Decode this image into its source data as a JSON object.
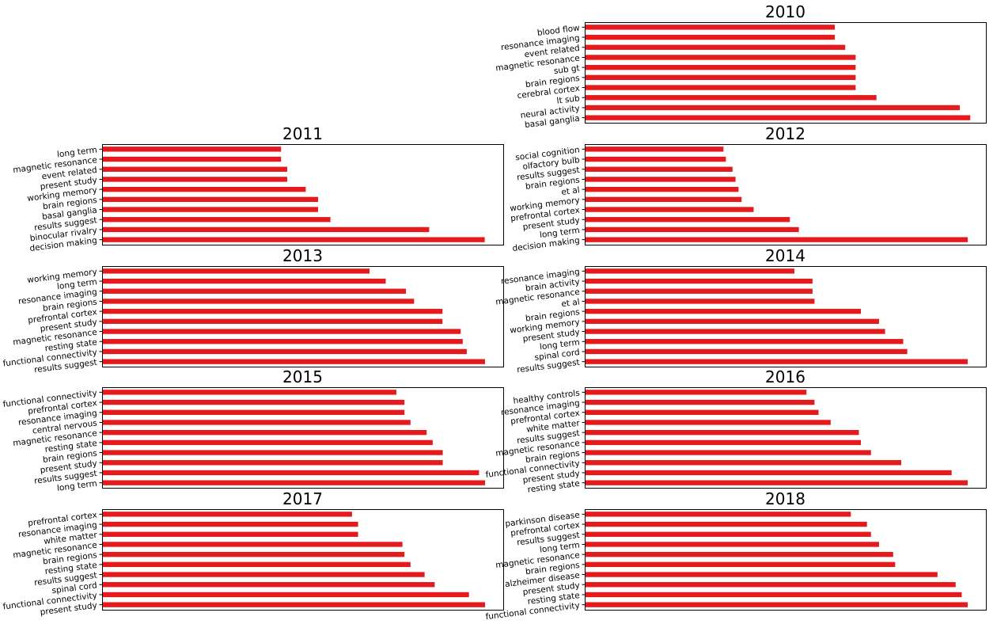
{
  "colors": {
    "bar": "#e41a1c",
    "axes": "#000000",
    "background": "#ffffff"
  },
  "chart_data": [
    {
      "type": "bar",
      "orientation": "horizontal",
      "title": "2010",
      "categories": [
        "blood flow",
        "resonance imaging",
        "event related",
        "magnetic resonance",
        "sub gt",
        "brain regions",
        "cerebral cortex",
        "lt sub",
        "neural activity",
        "basal ganglia"
      ],
      "values": [
        24,
        24,
        25,
        26,
        26,
        26,
        26,
        28,
        36,
        37
      ],
      "xlim": [
        0,
        38.5
      ]
    },
    {
      "type": "bar",
      "orientation": "horizontal",
      "title": "2011",
      "categories": [
        "long term",
        "magnetic resonance",
        "event related",
        "present study",
        "working memory",
        "brain regions",
        "basal ganglia",
        "results suggest",
        "binocular rivalry",
        "decision making"
      ],
      "values": [
        29,
        29,
        30,
        30,
        33,
        35,
        35,
        37,
        53,
        62
      ],
      "xlim": [
        0,
        65
      ]
    },
    {
      "type": "bar",
      "orientation": "horizontal",
      "title": "2012",
      "categories": [
        "social cognition",
        "olfactory bulb",
        "results suggest",
        "brain regions",
        "et al",
        "working memory",
        "prefrontal cortex",
        "present study",
        "long term",
        "decision making"
      ],
      "values": [
        23,
        23.4,
        24.5,
        25,
        25.5,
        26,
        28,
        34,
        35.5,
        63.5
      ],
      "xlim": [
        0,
        66.5
      ]
    },
    {
      "type": "bar",
      "orientation": "horizontal",
      "title": "2013",
      "categories": [
        "working memory",
        "long term",
        "resonance imaging",
        "brain regions",
        "prefrontal cortex",
        "present study",
        "magnetic resonance",
        "resting state",
        "functional connectivity",
        "results suggest"
      ],
      "values": [
        66,
        70,
        75,
        77,
        84,
        84,
        88.5,
        89,
        90,
        94.5
      ],
      "xlim": [
        0,
        99
      ]
    },
    {
      "type": "bar",
      "orientation": "horizontal",
      "title": "2014",
      "categories": [
        "resonance imaging",
        "brain activity",
        "magnetic resonance",
        "et al",
        "brain regions",
        "working memory",
        "present study",
        "long term",
        "spinal cord",
        "results suggest"
      ],
      "values": [
        52,
        56.5,
        56.5,
        57,
        68.5,
        73,
        74.5,
        79,
        80,
        95
      ],
      "xlim": [
        0,
        99.5
      ]
    },
    {
      "type": "bar",
      "orientation": "horizontal",
      "title": "2015",
      "categories": [
        "functional connectivity",
        "prefrontal cortex",
        "resonance imaging",
        "central nervous",
        "magnetic resonance",
        "resting state",
        "brain regions",
        "present study",
        "results suggest",
        "long term"
      ],
      "values": [
        73,
        75,
        75,
        76.5,
        80.5,
        82,
        84.5,
        84.5,
        93.5,
        95
      ],
      "xlim": [
        0,
        99.5
      ]
    },
    {
      "type": "bar",
      "orientation": "horizontal",
      "title": "2016",
      "categories": [
        "healthy controls",
        "resonance imaging",
        "prefrontal cortex",
        "white matter",
        "results suggest",
        "magnetic resonance",
        "brain regions",
        "functional connectivity",
        "present study",
        "resting state"
      ],
      "values": [
        55,
        57,
        58,
        61,
        68,
        68.5,
        71,
        78.5,
        91,
        95
      ],
      "xlim": [
        0,
        99.5
      ]
    },
    {
      "type": "bar",
      "orientation": "horizontal",
      "title": "2017",
      "categories": [
        "prefrontal cortex",
        "resonance imaging",
        "white matter",
        "magnetic resonance",
        "brain regions",
        "resting state",
        "results suggest",
        "spinal cord",
        "functional connectivity",
        "present study"
      ],
      "values": [
        62,
        63.5,
        63.5,
        74.5,
        75,
        76.5,
        80,
        82.5,
        91,
        95
      ],
      "xlim": [
        0,
        99.5
      ]
    },
    {
      "type": "bar",
      "orientation": "horizontal",
      "title": "2018",
      "categories": [
        "parkinson disease",
        "prefrontal cortex",
        "results suggest",
        "long term",
        "magnetic resonance",
        "brain regions",
        "alzheimer disease",
        "present study",
        "resting state",
        "functional connectivity"
      ],
      "values": [
        66,
        70,
        71,
        73,
        76.5,
        77,
        87.5,
        92,
        93.5,
        95
      ],
      "xlim": [
        0,
        99.5
      ]
    }
  ]
}
